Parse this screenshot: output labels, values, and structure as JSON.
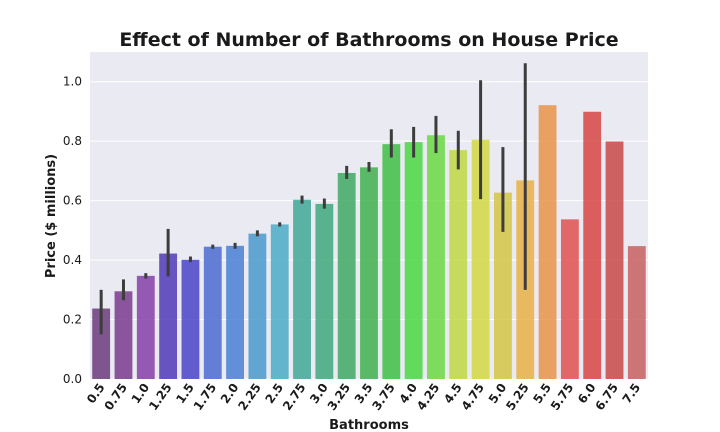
{
  "chart_data": {
    "type": "bar",
    "title": "Effect of Number of Bathrooms on House Price",
    "xlabel": "Bathrooms",
    "ylabel": "Price ($ millions)",
    "ylim": [
      0,
      1.1
    ],
    "yticks": [
      "0.0",
      "0.2",
      "0.4",
      "0.6",
      "0.8",
      "1.0"
    ],
    "grid": true,
    "categories": [
      "0.5",
      "0.75",
      "1.0",
      "1.25",
      "1.5",
      "1.75",
      "2.0",
      "2.25",
      "2.5",
      "2.75",
      "3.0",
      "3.25",
      "3.5",
      "3.75",
      "4.0",
      "4.25",
      "4.5",
      "4.75",
      "5.0",
      "5.25",
      "5.5",
      "5.75",
      "6.0",
      "6.75",
      "7.5"
    ],
    "values": [
      0.237,
      0.295,
      0.347,
      0.422,
      0.401,
      0.445,
      0.448,
      0.489,
      0.52,
      0.603,
      0.589,
      0.693,
      0.712,
      0.79,
      0.797,
      0.82,
      0.77,
      0.805,
      0.627,
      0.668,
      0.921,
      0.537,
      0.899,
      0.799,
      0.447
    ],
    "error_low": [
      0.15,
      0.265,
      0.338,
      0.345,
      0.393,
      0.438,
      0.438,
      0.48,
      0.513,
      0.59,
      0.573,
      0.673,
      0.697,
      0.745,
      0.745,
      0.76,
      0.705,
      0.605,
      0.495,
      0.3,
      null,
      null,
      null,
      null,
      null
    ],
    "error_high": [
      0.3,
      0.335,
      0.356,
      0.505,
      0.412,
      0.452,
      0.458,
      0.5,
      0.527,
      0.617,
      0.607,
      0.717,
      0.73,
      0.84,
      0.848,
      0.885,
      0.835,
      1.005,
      0.78,
      1.062,
      null,
      null,
      null,
      null,
      null
    ],
    "colors": [
      "#6b3b7a",
      "#7a3b8e",
      "#8540a8",
      "#5039b8",
      "#4a44c8",
      "#4a6bd0",
      "#4a80d4",
      "#4a98cc",
      "#4aacc6",
      "#3fa897",
      "#3fa87c",
      "#3fa862",
      "#3fb04e",
      "#3fbe45",
      "#4ad843",
      "#6bd843",
      "#c0d843",
      "#d4d843",
      "#d4c445",
      "#e8b045",
      "#e8944a",
      "#e05050",
      "#d84545",
      "#c84848",
      "#c86060"
    ]
  }
}
